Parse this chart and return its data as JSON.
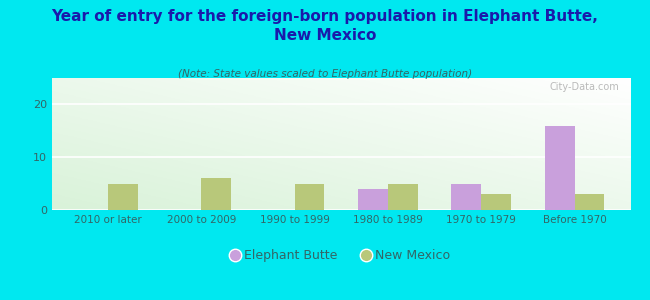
{
  "title": "Year of entry for the foreign-born population in Elephant Butte,\nNew Mexico",
  "subtitle": "(Note: State values scaled to Elephant Butte population)",
  "categories": [
    "2010 or later",
    "2000 to 2009",
    "1990 to 1999",
    "1980 to 1989",
    "1970 to 1979",
    "Before 1970"
  ],
  "elephant_butte": [
    0,
    0,
    0,
    4,
    5,
    16
  ],
  "new_mexico": [
    5,
    6,
    5,
    5,
    3,
    3
  ],
  "eb_color": "#c9a0dc",
  "nm_color": "#b8c87a",
  "background_color": "#00e8f0",
  "title_color": "#1a1aaa",
  "subtitle_color": "#336666",
  "tick_color": "#336666",
  "ylim": [
    0,
    25
  ],
  "yticks": [
    0,
    10,
    20
  ],
  "bar_width": 0.32,
  "legend_eb": "Elephant Butte",
  "legend_nm": "New Mexico",
  "watermark": "City-Data.com"
}
